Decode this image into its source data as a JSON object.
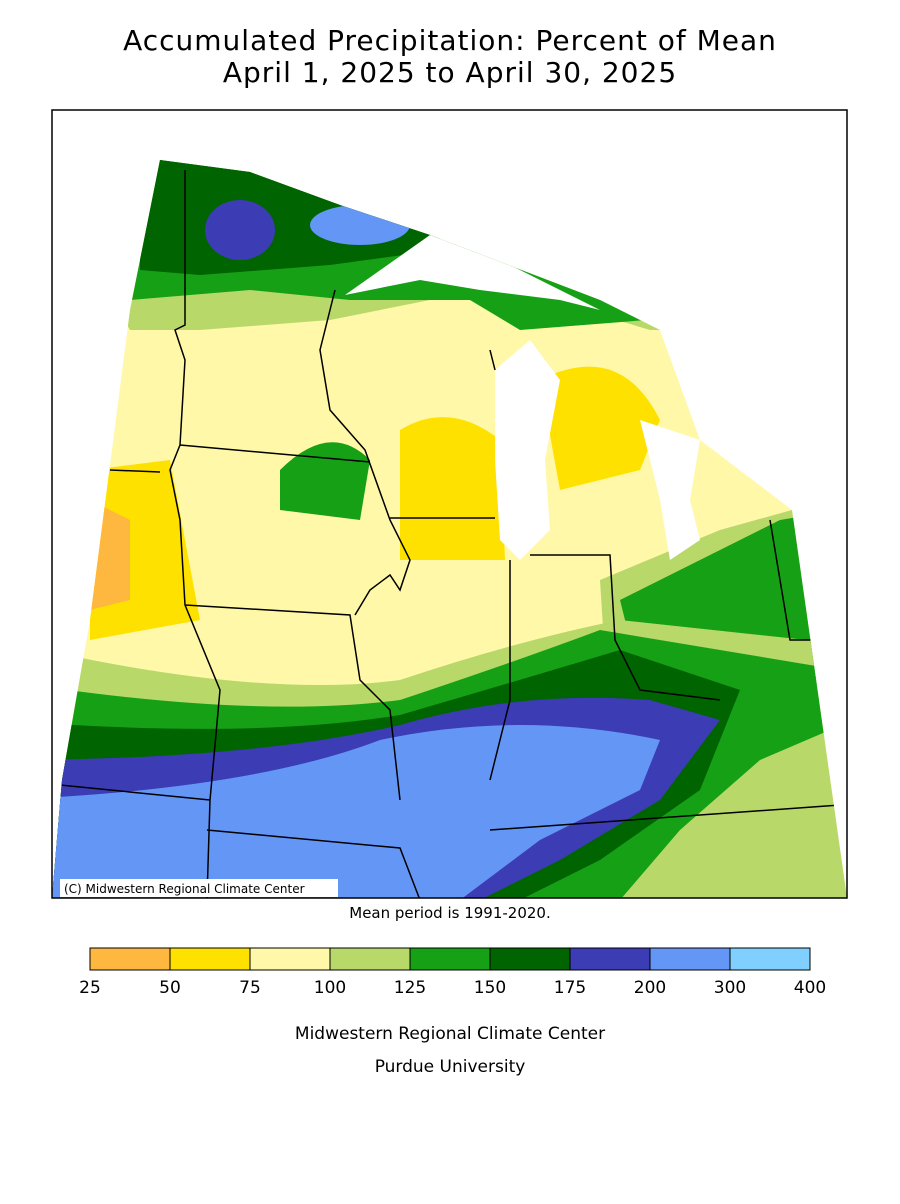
{
  "title": [
    "Accumulated Precipitation: Percent of Mean",
    "April 1, 2025 to April 30, 2025"
  ],
  "copyright": "(C) Midwestern Regional Climate Center",
  "note": "Mean period is 1991-2020.",
  "legend": {
    "breaks": [
      25,
      50,
      75,
      100,
      125,
      150,
      175,
      200,
      300,
      400
    ],
    "colors": [
      "#ffb83f",
      "#ffe100",
      "#fff8a8",
      "#b9d86a",
      "#16a016",
      "#006400",
      "#3c3cb4",
      "#6496f5",
      "#80d0ff"
    ]
  },
  "credits": [
    "Midwestern Regional Climate Center",
    "Purdue University"
  ]
}
